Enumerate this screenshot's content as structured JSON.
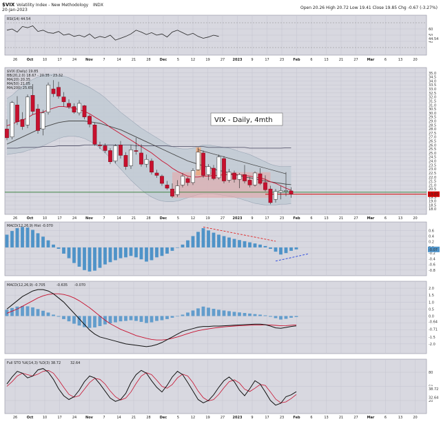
{
  "header": {
    "symbol": "$VIX",
    "name": "Volatility Index - New Methodology",
    "exchange": "INDX",
    "date": "20-Jan-2023",
    "ohlc": "Open 20.26  High 20.72  Low 19.41  Close 19.85  Chg -0.67 (-3.27%)"
  },
  "colors": {
    "bg": "#ffffff",
    "panel": "#d8d8e0",
    "grid": "#c4c4cf",
    "up": "#ffffff",
    "down": "#c8102e",
    "bollinger": "#9aa6b5",
    "ma20": "#c8102e",
    "ma50": "#444444",
    "ma200": "#5a5a70",
    "hist": "#4f93c8",
    "support": "#2e7d32",
    "current": "#d40000"
  },
  "annotation": "VIX - Daily, 4mth",
  "chart_data": [
    {
      "type": "line",
      "panel": "rsi",
      "legend": "RSI(14) 44.54",
      "ylim": [
        20,
        80
      ],
      "ticks": [
        "60",
        "50",
        "40"
      ],
      "last": "44.54",
      "values": [
        58,
        60,
        55,
        64,
        62,
        65,
        56,
        58,
        54,
        53,
        56,
        50,
        52,
        48,
        50,
        47,
        52,
        45,
        48,
        46,
        50,
        42,
        45,
        48,
        52,
        58,
        55,
        51,
        54,
        50,
        52,
        47,
        55,
        58,
        54,
        50,
        53,
        48,
        45,
        47,
        50,
        48
      ]
    },
    {
      "type": "candlestick",
      "panel": "price",
      "legend": [
        "$VIX (Daily) 19.85",
        "BB(20,2.0) 18.67 - 20.35 - 23.32",
        "MA(20) 20.35",
        "MA(50) 21.05",
        "MA(200) 25.65"
      ],
      "ylim": [
        17.5,
        35.5
      ],
      "ticks": [
        "35.0",
        "34.5",
        "34.0",
        "33.5",
        "33.0",
        "32.5",
        "32.0",
        "31.5",
        "31.0",
        "30.5",
        "30.0",
        "29.5",
        "29.0",
        "28.5",
        "28.0",
        "27.5",
        "27.0",
        "26.5",
        "26.0",
        "25.5",
        "25.0",
        "24.5",
        "24.0",
        "23.5",
        "23.0",
        "22.5",
        "22.0",
        "21.5",
        "21.0",
        "20.5",
        "20.0",
        "19.5",
        "19.0",
        "18.5",
        "18.0"
      ],
      "last_label": "19.85",
      "support": 20.1,
      "candles": [
        {
          "o": 28.0,
          "h": 29.2,
          "l": 26.6,
          "c": 26.9
        },
        {
          "o": 27.0,
          "h": 31.5,
          "l": 26.7,
          "c": 31.3
        },
        {
          "o": 31.0,
          "h": 32.1,
          "l": 28.5,
          "c": 28.9
        },
        {
          "o": 29.2,
          "h": 30.1,
          "l": 27.9,
          "c": 28.3
        },
        {
          "o": 28.5,
          "h": 32.3,
          "l": 28.1,
          "c": 32.0
        },
        {
          "o": 32.2,
          "h": 33.6,
          "l": 29.8,
          "c": 30.2
        },
        {
          "o": 30.5,
          "h": 31.1,
          "l": 27.4,
          "c": 27.8
        },
        {
          "o": 28.0,
          "h": 30.4,
          "l": 27.2,
          "c": 30.0
        },
        {
          "o": 30.1,
          "h": 33.8,
          "l": 29.8,
          "c": 33.5
        },
        {
          "o": 33.0,
          "h": 34.1,
          "l": 32.0,
          "c": 32.4
        },
        {
          "o": 33.2,
          "h": 33.9,
          "l": 31.8,
          "c": 32.1
        },
        {
          "o": 32.0,
          "h": 32.6,
          "l": 30.8,
          "c": 31.4
        },
        {
          "o": 31.2,
          "h": 31.7,
          "l": 30.5,
          "c": 30.8
        },
        {
          "o": 30.8,
          "h": 31.2,
          "l": 29.9,
          "c": 30.1
        },
        {
          "o": 30.0,
          "h": 31.6,
          "l": 29.7,
          "c": 31.2
        },
        {
          "o": 30.9,
          "h": 31.0,
          "l": 29.2,
          "c": 29.5
        },
        {
          "o": 29.6,
          "h": 29.8,
          "l": 28.2,
          "c": 28.6
        },
        {
          "o": 28.5,
          "h": 28.8,
          "l": 25.9,
          "c": 26.1
        },
        {
          "o": 26.0,
          "h": 26.4,
          "l": 25.5,
          "c": 25.9
        },
        {
          "o": 25.9,
          "h": 26.2,
          "l": 25.0,
          "c": 25.3
        },
        {
          "o": 25.3,
          "h": 25.6,
          "l": 23.6,
          "c": 23.9
        },
        {
          "o": 24.0,
          "h": 26.1,
          "l": 23.7,
          "c": 25.9
        },
        {
          "o": 26.0,
          "h": 26.5,
          "l": 24.3,
          "c": 24.7
        },
        {
          "o": 24.7,
          "h": 25.1,
          "l": 22.9,
          "c": 23.3
        },
        {
          "o": 23.4,
          "h": 26.0,
          "l": 23.0,
          "c": 25.4
        },
        {
          "o": 25.3,
          "h": 26.9,
          "l": 24.8,
          "c": 25.2
        },
        {
          "o": 25.0,
          "h": 26.1,
          "l": 23.3,
          "c": 23.6
        },
        {
          "o": 23.6,
          "h": 24.8,
          "l": 23.2,
          "c": 24.2
        },
        {
          "o": 24.0,
          "h": 24.3,
          "l": 22.3,
          "c": 22.6
        },
        {
          "o": 22.5,
          "h": 22.9,
          "l": 21.9,
          "c": 22.2
        },
        {
          "o": 22.1,
          "h": 22.3,
          "l": 20.9,
          "c": 21.2
        },
        {
          "o": 21.0,
          "h": 21.5,
          "l": 20.4,
          "c": 20.6
        },
        {
          "o": 20.5,
          "h": 21.2,
          "l": 19.4,
          "c": 19.6
        },
        {
          "o": 19.8,
          "h": 21.6,
          "l": 19.5,
          "c": 20.9
        },
        {
          "o": 21.0,
          "h": 22.5,
          "l": 20.7,
          "c": 22.1
        },
        {
          "o": 21.8,
          "h": 22.0,
          "l": 20.9,
          "c": 21.3
        },
        {
          "o": 21.3,
          "h": 23.1,
          "l": 21.0,
          "c": 22.8
        },
        {
          "o": 22.9,
          "h": 25.7,
          "l": 22.8,
          "c": 25.1
        },
        {
          "o": 25.0,
          "h": 25.3,
          "l": 21.9,
          "c": 22.2
        },
        {
          "o": 22.3,
          "h": 23.6,
          "l": 21.6,
          "c": 23.3
        },
        {
          "o": 23.1,
          "h": 23.5,
          "l": 21.6,
          "c": 21.8
        },
        {
          "o": 21.9,
          "h": 24.8,
          "l": 21.7,
          "c": 24.5
        },
        {
          "o": 24.3,
          "h": 24.6,
          "l": 21.2,
          "c": 21.5
        },
        {
          "o": 21.6,
          "h": 23.0,
          "l": 21.3,
          "c": 22.6
        },
        {
          "o": 22.5,
          "h": 22.8,
          "l": 21.3,
          "c": 21.7
        },
        {
          "o": 21.7,
          "h": 22.5,
          "l": 20.6,
          "c": 22.3
        },
        {
          "o": 22.3,
          "h": 23.5,
          "l": 21.2,
          "c": 21.5
        },
        {
          "o": 21.6,
          "h": 22.0,
          "l": 20.7,
          "c": 21.0
        },
        {
          "o": 21.0,
          "h": 22.7,
          "l": 20.8,
          "c": 22.5
        },
        {
          "o": 22.4,
          "h": 23.1,
          "l": 21.0,
          "c": 21.2
        },
        {
          "o": 21.3,
          "h": 22.2,
          "l": 20.2,
          "c": 20.4
        },
        {
          "o": 20.5,
          "h": 20.9,
          "l": 18.6,
          "c": 18.8
        },
        {
          "o": 19.2,
          "h": 20.5,
          "l": 18.8,
          "c": 20.2
        },
        {
          "o": 20.1,
          "h": 20.9,
          "l": 19.2,
          "c": 20.3
        },
        {
          "o": 20.2,
          "h": 22.6,
          "l": 19.6,
          "c": 20.3
        },
        {
          "o": 20.26,
          "h": 20.72,
          "l": 19.41,
          "c": 19.85
        }
      ],
      "ma20": [
        28.4,
        28.6,
        28.9,
        29.1,
        29.4,
        29.8,
        30.0,
        30.1,
        30.4,
        30.6,
        30.8,
        30.8,
        30.7,
        30.6,
        30.4,
        30.2,
        29.9,
        29.5,
        29.1,
        28.7,
        28.2,
        27.8,
        27.4,
        27.0,
        26.6,
        26.2,
        25.8,
        25.4,
        25.0,
        24.5,
        24.0,
        23.6,
        23.1,
        22.7,
        22.4,
        22.1,
        22.0,
        22.0,
        22.1,
        22.1,
        22.2,
        22.2,
        22.3,
        22.3,
        22.3,
        22.3,
        22.2,
        22.1,
        22.0,
        21.9,
        21.7,
        21.4,
        21.2,
        20.9,
        20.6,
        20.35
      ],
      "ma50": [
        26.1,
        26.4,
        26.7,
        27.0,
        27.3,
        27.6,
        27.9,
        28.2,
        28.4,
        28.6,
        28.8,
        28.9,
        29.0,
        29.0,
        29.0,
        29.0,
        28.9,
        28.8,
        28.7,
        28.5,
        28.3,
        28.1,
        27.9,
        27.6,
        27.3,
        27.0,
        26.7,
        26.4,
        26.1,
        25.8,
        25.5,
        25.2,
        24.9,
        24.6,
        24.3,
        24.0,
        23.8,
        23.6,
        23.4,
        23.2,
        23.0,
        22.8,
        22.7,
        22.5,
        22.3,
        22.2,
        22.0,
        21.9,
        21.8,
        21.6,
        21.5,
        21.4,
        21.3,
        21.2,
        21.1,
        21.05
      ],
      "ma200": [
        25.6,
        25.6,
        25.6,
        25.7,
        25.7,
        25.7,
        25.7,
        25.8,
        25.8,
        25.8,
        25.9,
        25.9,
        25.9,
        25.9,
        25.9,
        26.0,
        26.0,
        26.0,
        26.0,
        26.0,
        26.0,
        26.0,
        26.0,
        26.0,
        26.0,
        25.9,
        25.9,
        25.9,
        25.9,
        25.9,
        25.9,
        25.9,
        25.8,
        25.8,
        25.8,
        25.8,
        25.8,
        25.8,
        25.8,
        25.7,
        25.7,
        25.7,
        25.7,
        25.7,
        25.7,
        25.7,
        25.7,
        25.6,
        25.6,
        25.6,
        25.6,
        25.6,
        25.6,
        25.6,
        25.65,
        25.65
      ],
      "bb_upper": [
        31.8,
        32.2,
        32.8,
        33.3,
        33.8,
        34.2,
        34.5,
        34.7,
        34.8,
        34.8,
        34.7,
        34.6,
        34.4,
        34.1,
        33.8,
        33.5,
        33.2,
        32.8,
        32.4,
        31.9,
        31.3,
        30.7,
        30.1,
        29.6,
        29.1,
        28.6,
        28.1,
        27.7,
        27.3,
        26.9,
        26.5,
        26.1,
        25.8,
        25.6,
        25.5,
        25.5,
        25.6,
        25.8,
        26.0,
        26.0,
        25.9,
        25.8,
        25.7,
        25.6,
        25.4,
        25.2,
        25.0,
        24.8,
        24.5,
        24.2,
        23.9,
        23.6,
        23.4,
        23.3,
        23.3,
        23.32
      ],
      "bb_lower": [
        24.8,
        24.9,
        25.0,
        25.1,
        25.3,
        25.5,
        25.7,
        25.9,
        26.2,
        26.5,
        26.8,
        27.0,
        27.1,
        27.1,
        27.0,
        26.8,
        26.5,
        26.1,
        25.6,
        25.0,
        24.4,
        23.7,
        23.0,
        22.3,
        21.6,
        21.0,
        20.4,
        19.9,
        19.5,
        19.2,
        19.0,
        18.9,
        18.9,
        19.0,
        19.2,
        19.4,
        19.6,
        19.8,
        19.9,
        19.9,
        19.9,
        19.8,
        19.7,
        19.6,
        19.5,
        19.3,
        19.1,
        18.9,
        18.7,
        18.6,
        18.5,
        18.5,
        18.5,
        18.6,
        18.6,
        18.67
      ]
    },
    {
      "type": "bar",
      "panel": "macd-hist",
      "legend": "MACD(12,26,9) Hist -0.070",
      "ylim": [
        -0.95,
        0.85
      ],
      "ticks": [
        "0.6",
        "0.4",
        "0.2",
        "0.0",
        "-0.2",
        "-0.4",
        "-0.6",
        "-0.8"
      ],
      "last": "-0.07",
      "values": [
        0.45,
        0.58,
        0.68,
        0.72,
        0.7,
        0.62,
        0.5,
        0.38,
        0.25,
        0.1,
        -0.05,
        -0.22,
        -0.38,
        -0.55,
        -0.68,
        -0.8,
        -0.85,
        -0.82,
        -0.72,
        -0.6,
        -0.52,
        -0.45,
        -0.38,
        -0.35,
        -0.3,
        -0.35,
        -0.42,
        -0.5,
        -0.45,
        -0.35,
        -0.3,
        -0.22,
        -0.12,
        0.0,
        0.1,
        0.25,
        0.4,
        0.55,
        0.68,
        0.6,
        0.52,
        0.45,
        0.4,
        0.35,
        0.3,
        0.26,
        0.22,
        0.18,
        0.14,
        0.1,
        0.05,
        -0.05,
        -0.15,
        -0.25,
        -0.2,
        -0.12,
        -0.07
      ]
    },
    {
      "type": "line",
      "panel": "macd",
      "legend": [
        "MACD(12,26,9) -0.705",
        "-0.635",
        "-0.070"
      ],
      "ylim": [
        -2.6,
        2.4
      ],
      "ticks": [
        "2.0",
        "1.5",
        "1.0",
        "0.5",
        "0.0",
        "-0.5",
        "-1.0",
        "-1.5",
        "-2.0"
      ],
      "last_macd": "-0.71",
      "last_signal": "-0.64",
      "series": [
        {
          "values": [
            0.5,
            0.8,
            1.1,
            1.4,
            1.6,
            1.8,
            1.9,
            1.9,
            1.8,
            1.6,
            1.3,
            1.0,
            0.6,
            0.2,
            -0.2,
            -0.6,
            -1.0,
            -1.3,
            -1.5,
            -1.6,
            -1.7,
            -1.8,
            -1.9,
            -2.0,
            -2.05,
            -2.1,
            -2.15,
            -2.2,
            -2.15,
            -2.05,
            -1.9,
            -1.7,
            -1.5,
            -1.3,
            -1.1,
            -1.0,
            -0.9,
            -0.8,
            -0.75,
            -0.75,
            -0.72,
            -0.72,
            -0.7,
            -0.68,
            -0.66,
            -0.64,
            -0.62,
            -0.6,
            -0.58,
            -0.58,
            -0.62,
            -0.72,
            -0.85,
            -0.88,
            -0.82,
            -0.75,
            -0.705
          ]
        },
        {
          "values": [
            0.2,
            0.35,
            0.5,
            0.7,
            0.9,
            1.1,
            1.3,
            1.45,
            1.55,
            1.6,
            1.6,
            1.55,
            1.45,
            1.3,
            1.1,
            0.85,
            0.6,
            0.3,
            0.0,
            -0.3,
            -0.55,
            -0.75,
            -0.95,
            -1.1,
            -1.25,
            -1.4,
            -1.5,
            -1.6,
            -1.68,
            -1.72,
            -1.72,
            -1.68,
            -1.6,
            -1.5,
            -1.38,
            -1.26,
            -1.15,
            -1.05,
            -0.98,
            -0.92,
            -0.86,
            -0.82,
            -0.78,
            -0.75,
            -0.72,
            -0.7,
            -0.68,
            -0.66,
            -0.65,
            -0.64,
            -0.63,
            -0.64,
            -0.67,
            -0.7,
            -0.69,
            -0.66,
            -0.635
          ]
        }
      ]
    },
    {
      "type": "line",
      "panel": "stochastics",
      "legend": [
        "Full STO %K(14,3) %D(3) 38.72",
        "32.64"
      ],
      "ylim": [
        -5,
        105
      ],
      "ticks": [
        "80",
        "50",
        "20"
      ],
      "last_k": "38.72",
      "last_d": "32.64",
      "series": [
        {
          "values": [
            55,
            70,
            82,
            78,
            68,
            72,
            85,
            88,
            80,
            65,
            45,
            30,
            22,
            28,
            42,
            60,
            72,
            68,
            55,
            40,
            25,
            18,
            22,
            35,
            58,
            75,
            84,
            78,
            62,
            48,
            38,
            52,
            70,
            82,
            75,
            58,
            40,
            22,
            15,
            20,
            32,
            48,
            62,
            70,
            60,
            42,
            30,
            45,
            62,
            55,
            38,
            20,
            10,
            14,
            28,
            32,
            38.72
          ]
        },
        {
          "values": [
            50,
            60,
            72,
            78,
            75,
            72,
            76,
            82,
            84,
            78,
            64,
            48,
            33,
            27,
            30,
            44,
            58,
            67,
            65,
            55,
            40,
            28,
            21,
            25,
            38,
            56,
            72,
            79,
            75,
            63,
            50,
            46,
            54,
            68,
            76,
            72,
            58,
            40,
            26,
            19,
            22,
            33,
            47,
            60,
            64,
            57,
            44,
            39,
            46,
            54,
            52,
            38,
            23,
            15,
            17,
            24,
            32.64
          ]
        }
      ]
    }
  ],
  "x_axis": {
    "labels": [
      "26",
      "Oct",
      "10",
      "17",
      "24",
      "Nov",
      "7",
      "14",
      "21",
      "28",
      "Dec",
      "5",
      "12",
      "19",
      "27",
      "2023",
      "9",
      "17",
      "23",
      "Feb",
      "6",
      "13",
      "21",
      "27",
      "Mar",
      "6",
      "13",
      "20"
    ],
    "bold": [
      "Oct",
      "Nov",
      "Dec",
      "2023",
      "Feb",
      "Mar"
    ]
  }
}
